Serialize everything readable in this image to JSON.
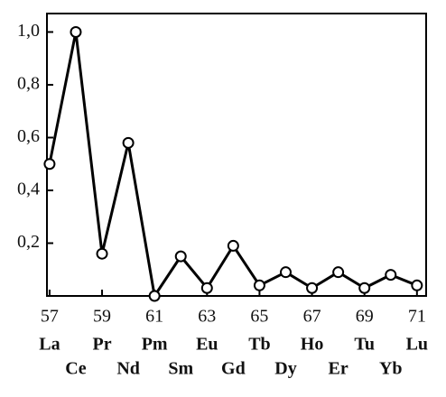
{
  "chart_data": {
    "type": "line",
    "x": [
      57,
      58,
      59,
      60,
      61,
      62,
      63,
      64,
      65,
      66,
      67,
      68,
      69,
      70,
      71
    ],
    "elements": [
      "La",
      "Ce",
      "Pr",
      "Nd",
      "Pm",
      "Sm",
      "Eu",
      "Gd",
      "Tb",
      "Dy",
      "Ho",
      "Er",
      "Tu",
      "Yb",
      "Lu"
    ],
    "series": [
      {
        "color": "#000000",
        "values": [
          0.5,
          1.0,
          0.16,
          0.58,
          0.0,
          0.15,
          0.03,
          0.19,
          0.04,
          0.09,
          0.03,
          0.09,
          0.03,
          0.08,
          0.04
        ]
      }
    ],
    "xlim": [
      56.9,
      71.35
    ],
    "ylim": [
      0,
      1.07
    ],
    "xticks": [
      57,
      59,
      61,
      63,
      65,
      67,
      69,
      71
    ],
    "yticks": [
      {
        "value": 0.2,
        "label": "0,2"
      },
      {
        "value": 0.4,
        "label": "0,4"
      },
      {
        "value": 0.6,
        "label": "0,6"
      },
      {
        "value": 0.8,
        "label": "0,8"
      },
      {
        "value": 1.0,
        "label": "1,0"
      }
    ]
  }
}
